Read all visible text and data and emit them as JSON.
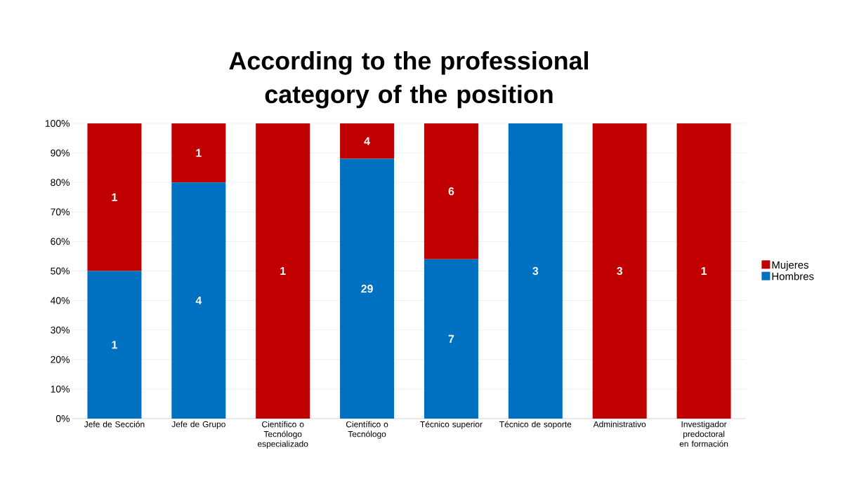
{
  "chart_data": {
    "type": "bar",
    "title": "According to the professional category of the position",
    "categories": [
      "Jefe de Sección",
      "Jefe de Grupo",
      "Científico o Tecnólogo especializado",
      "Científico o Tecnólogo",
      "Técnico superior",
      "Técnico de soporte",
      "Administrativo",
      "Investigador predoctoral en formación"
    ],
    "stacked": true,
    "series": [
      {
        "name": "Hombres",
        "color": "#0070c0",
        "values": [
          50,
          80,
          0,
          88,
          54,
          100,
          0,
          0
        ]
      },
      {
        "name": "Mujeres",
        "color": "#c00000",
        "values": [
          50,
          20,
          100,
          12,
          46,
          0,
          100,
          100
        ]
      }
    ],
    "annotations": [
      "1",
      "4",
      "29",
      "7",
      "3",
      "1",
      "1",
      "1",
      "4",
      "6",
      "3",
      "1"
    ],
    "ylim": [
      0,
      100
    ],
    "yticks": [
      {
        "value": 0,
        "label": "0%"
      },
      {
        "value": 10,
        "label": "10%"
      },
      {
        "value": 20,
        "label": "20%"
      },
      {
        "value": 30,
        "label": "30%"
      },
      {
        "value": 40,
        "label": "40%"
      },
      {
        "value": 50,
        "label": "50%"
      },
      {
        "value": 60,
        "label": "60%"
      },
      {
        "value": 70,
        "label": "70%"
      },
      {
        "value": 80,
        "label": "80%"
      },
      {
        "value": 90,
        "label": "90%"
      },
      {
        "value": 100,
        "label": "100%"
      }
    ],
    "grid": "y",
    "legend": "right"
  }
}
